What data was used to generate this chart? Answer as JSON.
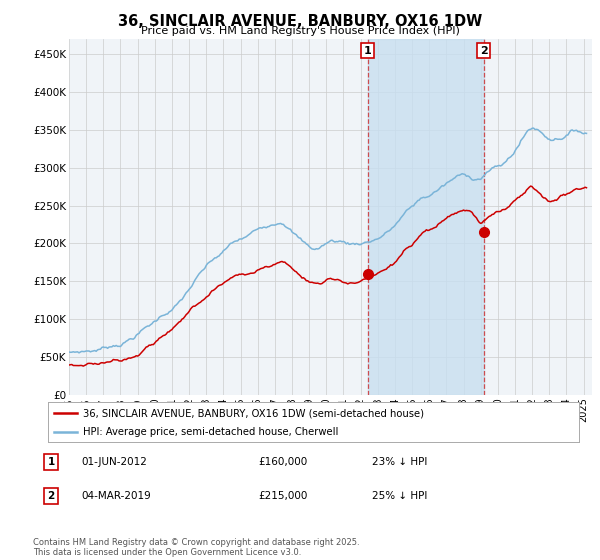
{
  "title": "36, SINCLAIR AVENUE, BANBURY, OX16 1DW",
  "subtitle": "Price paid vs. HM Land Registry's House Price Index (HPI)",
  "ylabel_ticks": [
    "£0",
    "£50K",
    "£100K",
    "£150K",
    "£200K",
    "£250K",
    "£300K",
    "£350K",
    "£400K",
    "£450K"
  ],
  "ytick_values": [
    0,
    50000,
    100000,
    150000,
    200000,
    250000,
    300000,
    350000,
    400000,
    450000
  ],
  "ylim": [
    0,
    470000
  ],
  "xlim_start": 1995.0,
  "xlim_end": 2025.5,
  "hpi_color": "#7ab4d8",
  "price_color": "#cc0000",
  "marker1_x": 2012.42,
  "marker2_x": 2019.17,
  "marker1_price": 160000,
  "marker2_price": 215000,
  "marker1_label": "01-JUN-2012",
  "marker2_label": "04-MAR-2019",
  "marker1_hpi_pct": "23% ↓ HPI",
  "marker2_hpi_pct": "25% ↓ HPI",
  "legend_line1": "36, SINCLAIR AVENUE, BANBURY, OX16 1DW (semi-detached house)",
  "legend_line2": "HPI: Average price, semi-detached house, Cherwell",
  "footnote": "Contains HM Land Registry data © Crown copyright and database right 2025.\nThis data is licensed under the Open Government Licence v3.0.",
  "bg_color": "#ffffff",
  "plot_bg_color": "#f0f4f8",
  "shade_color": "#c8dff0",
  "hpi_segments": [
    [
      1995.0,
      55000
    ],
    [
      1995.5,
      56000
    ],
    [
      1996.0,
      57500
    ],
    [
      1996.5,
      59000
    ],
    [
      1997.0,
      62000
    ],
    [
      1997.5,
      66000
    ],
    [
      1998.0,
      70000
    ],
    [
      1998.5,
      76000
    ],
    [
      1999.0,
      84000
    ],
    [
      1999.5,
      92000
    ],
    [
      2000.0,
      100000
    ],
    [
      2000.5,
      110000
    ],
    [
      2001.0,
      118000
    ],
    [
      2001.5,
      128000
    ],
    [
      2002.0,
      143000
    ],
    [
      2002.5,
      158000
    ],
    [
      2003.0,
      170000
    ],
    [
      2003.5,
      180000
    ],
    [
      2004.0,
      188000
    ],
    [
      2004.5,
      198000
    ],
    [
      2005.0,
      203000
    ],
    [
      2005.5,
      208000
    ],
    [
      2006.0,
      215000
    ],
    [
      2006.5,
      222000
    ],
    [
      2007.0,
      228000
    ],
    [
      2007.5,
      232000
    ],
    [
      2008.0,
      222000
    ],
    [
      2008.5,
      210000
    ],
    [
      2009.0,
      200000
    ],
    [
      2009.5,
      198000
    ],
    [
      2010.0,
      205000
    ],
    [
      2010.5,
      208000
    ],
    [
      2011.0,
      207000
    ],
    [
      2011.5,
      205000
    ],
    [
      2012.0,
      207000
    ],
    [
      2012.5,
      210000
    ],
    [
      2013.0,
      215000
    ],
    [
      2013.5,
      222000
    ],
    [
      2014.0,
      232000
    ],
    [
      2014.5,
      245000
    ],
    [
      2015.0,
      255000
    ],
    [
      2015.5,
      265000
    ],
    [
      2016.0,
      270000
    ],
    [
      2016.5,
      278000
    ],
    [
      2017.0,
      285000
    ],
    [
      2017.5,
      292000
    ],
    [
      2018.0,
      295000
    ],
    [
      2018.5,
      293000
    ],
    [
      2019.0,
      295000
    ],
    [
      2019.5,
      305000
    ],
    [
      2020.0,
      308000
    ],
    [
      2020.5,
      315000
    ],
    [
      2021.0,
      330000
    ],
    [
      2021.5,
      348000
    ],
    [
      2022.0,
      360000
    ],
    [
      2022.5,
      355000
    ],
    [
      2023.0,
      348000
    ],
    [
      2023.5,
      350000
    ],
    [
      2024.0,
      355000
    ],
    [
      2024.5,
      360000
    ],
    [
      2025.0,
      358000
    ]
  ],
  "pp_segments": [
    [
      1995.0,
      38000
    ],
    [
      1995.5,
      39000
    ],
    [
      1996.0,
      40500
    ],
    [
      1996.5,
      42000
    ],
    [
      1997.0,
      44000
    ],
    [
      1997.5,
      47000
    ],
    [
      1998.0,
      50000
    ],
    [
      1998.5,
      55000
    ],
    [
      1999.0,
      62000
    ],
    [
      1999.5,
      70000
    ],
    [
      2000.0,
      78000
    ],
    [
      2000.5,
      86000
    ],
    [
      2001.0,
      93000
    ],
    [
      2001.5,
      102000
    ],
    [
      2002.0,
      115000
    ],
    [
      2002.5,
      128000
    ],
    [
      2003.0,
      138000
    ],
    [
      2003.5,
      148000
    ],
    [
      2004.0,
      155000
    ],
    [
      2004.5,
      163000
    ],
    [
      2005.0,
      166000
    ],
    [
      2005.5,
      168000
    ],
    [
      2006.0,
      172000
    ],
    [
      2006.5,
      177000
    ],
    [
      2007.0,
      181000
    ],
    [
      2007.5,
      183000
    ],
    [
      2008.0,
      175000
    ],
    [
      2008.5,
      165000
    ],
    [
      2009.0,
      157000
    ],
    [
      2009.5,
      156000
    ],
    [
      2010.0,
      160000
    ],
    [
      2010.5,
      163000
    ],
    [
      2011.0,
      161000
    ],
    [
      2011.5,
      158000
    ],
    [
      2012.0,
      160000
    ],
    [
      2012.5,
      162000
    ],
    [
      2013.0,
      166000
    ],
    [
      2013.5,
      172000
    ],
    [
      2014.0,
      180000
    ],
    [
      2014.5,
      192000
    ],
    [
      2015.0,
      200000
    ],
    [
      2015.5,
      208000
    ],
    [
      2016.0,
      213000
    ],
    [
      2016.5,
      220000
    ],
    [
      2017.0,
      226000
    ],
    [
      2017.5,
      232000
    ],
    [
      2018.0,
      234000
    ],
    [
      2018.5,
      232000
    ],
    [
      2019.0,
      215000
    ],
    [
      2019.5,
      225000
    ],
    [
      2020.0,
      232000
    ],
    [
      2020.5,
      238000
    ],
    [
      2021.0,
      248000
    ],
    [
      2021.5,
      260000
    ],
    [
      2022.0,
      268000
    ],
    [
      2022.5,
      258000
    ],
    [
      2023.0,
      250000
    ],
    [
      2023.5,
      255000
    ],
    [
      2024.0,
      262000
    ],
    [
      2024.5,
      268000
    ],
    [
      2025.0,
      272000
    ]
  ]
}
